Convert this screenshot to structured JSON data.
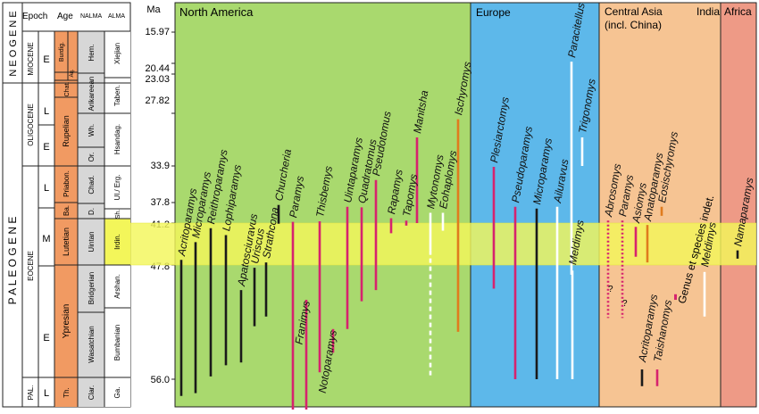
{
  "table": {
    "headers": {
      "epoch": "Epoch",
      "age": "Age",
      "nalma": "NALMA",
      "alma": "ALMA"
    },
    "periods": {
      "neogene": "N E O G E N E",
      "paleogene": "P A L E O G E N E"
    },
    "epochs": {
      "miocene": "MIOCENE",
      "miocene_sub": "E",
      "oligocene": "OLIGOCENE",
      "oligocene_early": "E",
      "oligocene_late": "L",
      "eocene": "EOCENE",
      "eocene_late": "L",
      "eocene_middle": "M",
      "eocene_early": "E",
      "paleocene": "PAL.",
      "paleocene_late": "L"
    },
    "ages": {
      "burdigalian": "Burdig.",
      "aquitanian": "Aq.",
      "chattian": "Chat.",
      "rupelian": "Rupelian",
      "priabonian": "Priabon.",
      "bartonian": "Ba.",
      "lutetian": "Lutetian",
      "ypresian": "Ypresian",
      "thanetian": "Th."
    },
    "nalma": {
      "hemingfordian": "Hem.",
      "arikareean": "Arikareean",
      "whitneyan": "Wh.",
      "orellan": "Or.",
      "chadronian": "Chad.",
      "duchesnean": "D.",
      "uintan": "Uintan",
      "bridgerian": "Bridgerian",
      "wasatchian": "Wasatchian",
      "clarkforkian": "Clar."
    },
    "alma": {
      "xiejian": "Xiejian",
      "tabenbulukian": "Taben.",
      "hsandagolian": "Hsandag.",
      "ulangochuian_ergilian": "Ul./ Erg.",
      "sharamurunian": "Sh.",
      "irdinmanhan": "Irdin.",
      "arshantan": "Arshan.",
      "bumbanian": "Bumbanian",
      "gashatan": "Ga."
    }
  },
  "timescale": {
    "unit": "Ma",
    "ticks": [
      "15.97",
      "20.44",
      "23.03",
      "27.82",
      "33.9",
      "37.8",
      "41.2",
      "47.8",
      "56.0"
    ]
  },
  "regions": {
    "north_america": "North America",
    "europe": "Europe",
    "central_asia_line1": "Central Asia",
    "central_asia_line2": "(incl. China)",
    "india": "India",
    "africa": "Africa"
  },
  "legend": {
    "genus_indet": "Genus et species indet."
  },
  "question_mark": "?",
  "colors": {
    "black": "#1a1a1a",
    "magenta": "#d6236e",
    "white": "#ffffff",
    "orange": "#e07b1e",
    "north_america_bg": "#a9d96e",
    "europe_bg": "#5db8ea",
    "asia_bg": "#f6c493",
    "africa_bg": "#ee9a86",
    "highlight_band": "#f3f65a",
    "age_column": "#f19a62",
    "nalma_column": "#d7d7d7"
  },
  "chart_data": {
    "type": "range-chart",
    "y_axis": {
      "label": "Ma",
      "reversed": true,
      "ticks": [
        15.97,
        20.44,
        23.03,
        27.82,
        33.9,
        37.8,
        41.2,
        47.8,
        56.0
      ]
    },
    "highlight_interval": [
      41.2,
      47.8
    ],
    "taxa": [
      {
        "name": "Acritoparamys",
        "region": "North America",
        "color": "black",
        "top": 47.0,
        "bottom": 57.2
      },
      {
        "name": "Microparamys",
        "region": "North America",
        "color": "black",
        "top": 44.2,
        "bottom": 57.0
      },
      {
        "name": "Reithroparamys",
        "region": "North America",
        "color": "black",
        "top": 42.0,
        "bottom": 55.8
      },
      {
        "name": "Lophiparamys",
        "region": "North America",
        "color": "black",
        "top": 43.1,
        "bottom": 55.0
      },
      {
        "name": "Apatosciuravus",
        "region": "North America",
        "color": "black",
        "top": 49.6,
        "bottom": 54.8
      },
      {
        "name": "Uriscus",
        "region": "North America",
        "color": "black",
        "top": 48.0,
        "bottom": 52.2
      },
      {
        "name": "Strathcona",
        "region": "North America",
        "color": "black",
        "top": 47.4,
        "bottom": 51.5
      },
      {
        "name": "Churcheria",
        "region": "North America",
        "color": "black",
        "top": 38.2,
        "bottom": 41.3
      },
      {
        "name": "Paramys",
        "region": "North America",
        "color": "magenta",
        "top": 41.0,
        "bottom": 58.5
      },
      {
        "name": "Franimys",
        "region": "North America",
        "color": "magenta",
        "top": 50.3,
        "bottom": 58.9
      },
      {
        "name": "Thisbemys",
        "region": "North America",
        "color": "magenta",
        "top": 40.9,
        "bottom": 55.5
      },
      {
        "name": "Notoparamys",
        "region": "North America",
        "color": "magenta",
        "top": 52.4,
        "bottom": 54.1
      },
      {
        "name": "Uintaparamys",
        "region": "North America",
        "color": "magenta",
        "top": 38.5,
        "bottom": 52.4
      },
      {
        "name": "Quadratomus",
        "region": "North America",
        "color": "magenta",
        "top": 38.6,
        "bottom": 50.4
      },
      {
        "name": "Pseudotomus",
        "region": "North America",
        "color": "magenta",
        "top": 35.4,
        "bottom": 49.6
      },
      {
        "name": "Rapamys",
        "region": "North America",
        "color": "magenta",
        "top": 40.4,
        "bottom": 42.8
      },
      {
        "name": "Tapomys",
        "region": "North America",
        "color": "magenta",
        "top": 40.8,
        "bottom": 41.6
      },
      {
        "name": "Manitsha",
        "region": "North America",
        "color": "magenta",
        "top": 30.6,
        "bottom": 41.2
      },
      {
        "name": "Mytonomys",
        "region": "North America",
        "color": "white",
        "top": 39.5,
        "bottom": 55.9
      },
      {
        "name": "Eohaplomys",
        "region": "North America",
        "color": "white",
        "top": 39.5,
        "bottom": 42.4
      },
      {
        "name": "Ischyromys",
        "region": "North America",
        "color": "orange",
        "top": 28.5,
        "bottom": 52.6
      },
      {
        "name": "Plesiarctomys",
        "region": "Europe",
        "color": "magenta",
        "top": 34.0,
        "bottom": 49.5
      },
      {
        "name": "Pseudoparamys",
        "region": "Europe",
        "color": "magenta",
        "top": 38.5,
        "bottom": 56.0
      },
      {
        "name": "Microparamys",
        "region": "Europe",
        "color": "black",
        "top": 38.8,
        "bottom": 56.0
      },
      {
        "name": "Ailuravus",
        "region": "Europe",
        "color": "white",
        "top": 38.5,
        "bottom": 56.0
      },
      {
        "name": "Paracitellus",
        "region": "Europe",
        "color": "white",
        "top": 20.2,
        "bottom": 48.5
      },
      {
        "name": "Trigonomys",
        "region": "Europe",
        "color": "white",
        "top": 30.6,
        "bottom": 33.9
      },
      {
        "name": "Meldimys",
        "region": "Europe",
        "color": "white",
        "top": 48.2,
        "bottom": 56.0
      },
      {
        "name": "Abrosomys",
        "region": "Central Asia",
        "color": "magenta",
        "dashed": true,
        "top": 40.8,
        "bottom": 51.6
      },
      {
        "name": "Paramys",
        "region": "Central Asia",
        "color": "magenta",
        "dashed": true,
        "top": 40.8,
        "bottom": 51.6
      },
      {
        "name": "Asiomys",
        "region": "Central Asia",
        "color": "magenta",
        "top": 41.8,
        "bottom": 46.5
      },
      {
        "name": "Anatoparamys",
        "region": "Central Asia",
        "color": "orange",
        "top": 41.5,
        "bottom": 47.4
      },
      {
        "name": "Eosischyromys",
        "region": "Central Asia",
        "color": "orange",
        "top": 38.5,
        "bottom": 40.0
      },
      {
        "name": "Genus et species indet.",
        "region": "Central Asia",
        "color": "magenta",
        "top": 49.9,
        "bottom": 50.3
      },
      {
        "name": "Meldimys",
        "region": "India",
        "color": "white",
        "top": 48.3,
        "bottom": 51.5
      },
      {
        "name": "Namaparamys",
        "region": "Africa",
        "color": "black",
        "top": 45.5,
        "bottom": 46.8
      },
      {
        "name": "Acritoparamys",
        "region": "Central Asia",
        "color": "black",
        "top": 55.3,
        "bottom": 56.5
      },
      {
        "name": "Taishanomys",
        "region": "Central Asia",
        "color": "magenta",
        "top": 55.3,
        "bottom": 56.5
      }
    ]
  }
}
